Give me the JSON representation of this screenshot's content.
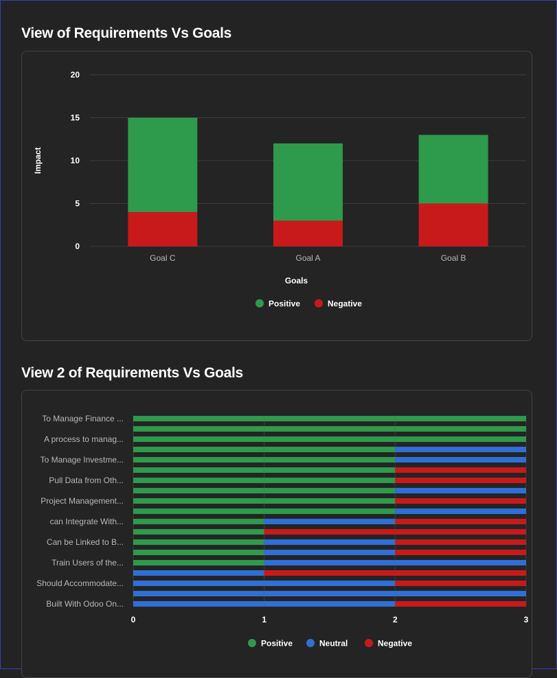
{
  "section1": {
    "title": "View of Requirements Vs Goals"
  },
  "section2": {
    "title": "View 2 of Requirements Vs Goals"
  },
  "colors": {
    "positive": "#2e9a4b",
    "negative": "#c81a1a",
    "neutral": "#2f6fd6",
    "grid": "#3c3c3c"
  },
  "chart_data": [
    {
      "type": "bar",
      "stacked": true,
      "ylabel": "Impact",
      "xlabel": "Goals",
      "ylim": [
        0,
        20
      ],
      "yticks": [
        0,
        5,
        10,
        15,
        20
      ],
      "categories": [
        "Goal C",
        "Goal A",
        "Goal B"
      ],
      "series": [
        {
          "name": "Negative",
          "color": "#c81a1a",
          "values": [
            4,
            3,
            5
          ]
        },
        {
          "name": "Positive",
          "color": "#2e9a4b",
          "values": [
            11,
            9,
            8
          ]
        }
      ],
      "legend": [
        {
          "name": "Positive",
          "color": "#2e9a4b"
        },
        {
          "name": "Negative",
          "color": "#c81a1a"
        }
      ],
      "legend_position": "bottom",
      "grid": true
    },
    {
      "type": "bar",
      "orientation": "horizontal",
      "stacked": true,
      "xlim": [
        0,
        3
      ],
      "xticks": [
        "0",
        "1",
        "2",
        "3"
      ],
      "category_labels": [
        "To Manage Finance ...",
        "A process to manag...",
        "To Manage Investme...",
        "Pull Data from Oth...",
        "Project Management...",
        "can Integrate With...",
        "Can be Linked to B...",
        "Train Users of the...",
        "Should Accommodate...",
        "Built With Odoo On..."
      ],
      "rows": [
        [
          "positive",
          "positive",
          "positive"
        ],
        [
          "positive",
          "positive",
          "positive"
        ],
        [
          "positive",
          "positive",
          "positive"
        ],
        [
          "positive",
          "positive",
          "neutral"
        ],
        [
          "positive",
          "positive",
          "neutral"
        ],
        [
          "positive",
          "positive",
          "negative"
        ],
        [
          "positive",
          "positive",
          "negative"
        ],
        [
          "positive",
          "positive",
          "neutral"
        ],
        [
          "positive",
          "positive",
          "negative"
        ],
        [
          "positive",
          "positive",
          "neutral"
        ],
        [
          "positive",
          "neutral",
          "negative"
        ],
        [
          "positive",
          "negative",
          "negative"
        ],
        [
          "positive",
          "neutral",
          "negative"
        ],
        [
          "positive",
          "neutral",
          "negative"
        ],
        [
          "positive",
          "neutral",
          "neutral"
        ],
        [
          "neutral",
          "negative",
          "negative"
        ],
        [
          "neutral",
          "neutral",
          "negative"
        ],
        [
          "neutral",
          "neutral",
          "neutral"
        ],
        [
          "neutral",
          "neutral",
          "negative"
        ]
      ],
      "legend": [
        {
          "name": "Positive",
          "color": "#2e9a4b"
        },
        {
          "name": "Neutral",
          "color": "#2f6fd6"
        },
        {
          "name": "Negative",
          "color": "#c81a1a"
        }
      ],
      "legend_position": "bottom",
      "grid": true
    }
  ]
}
